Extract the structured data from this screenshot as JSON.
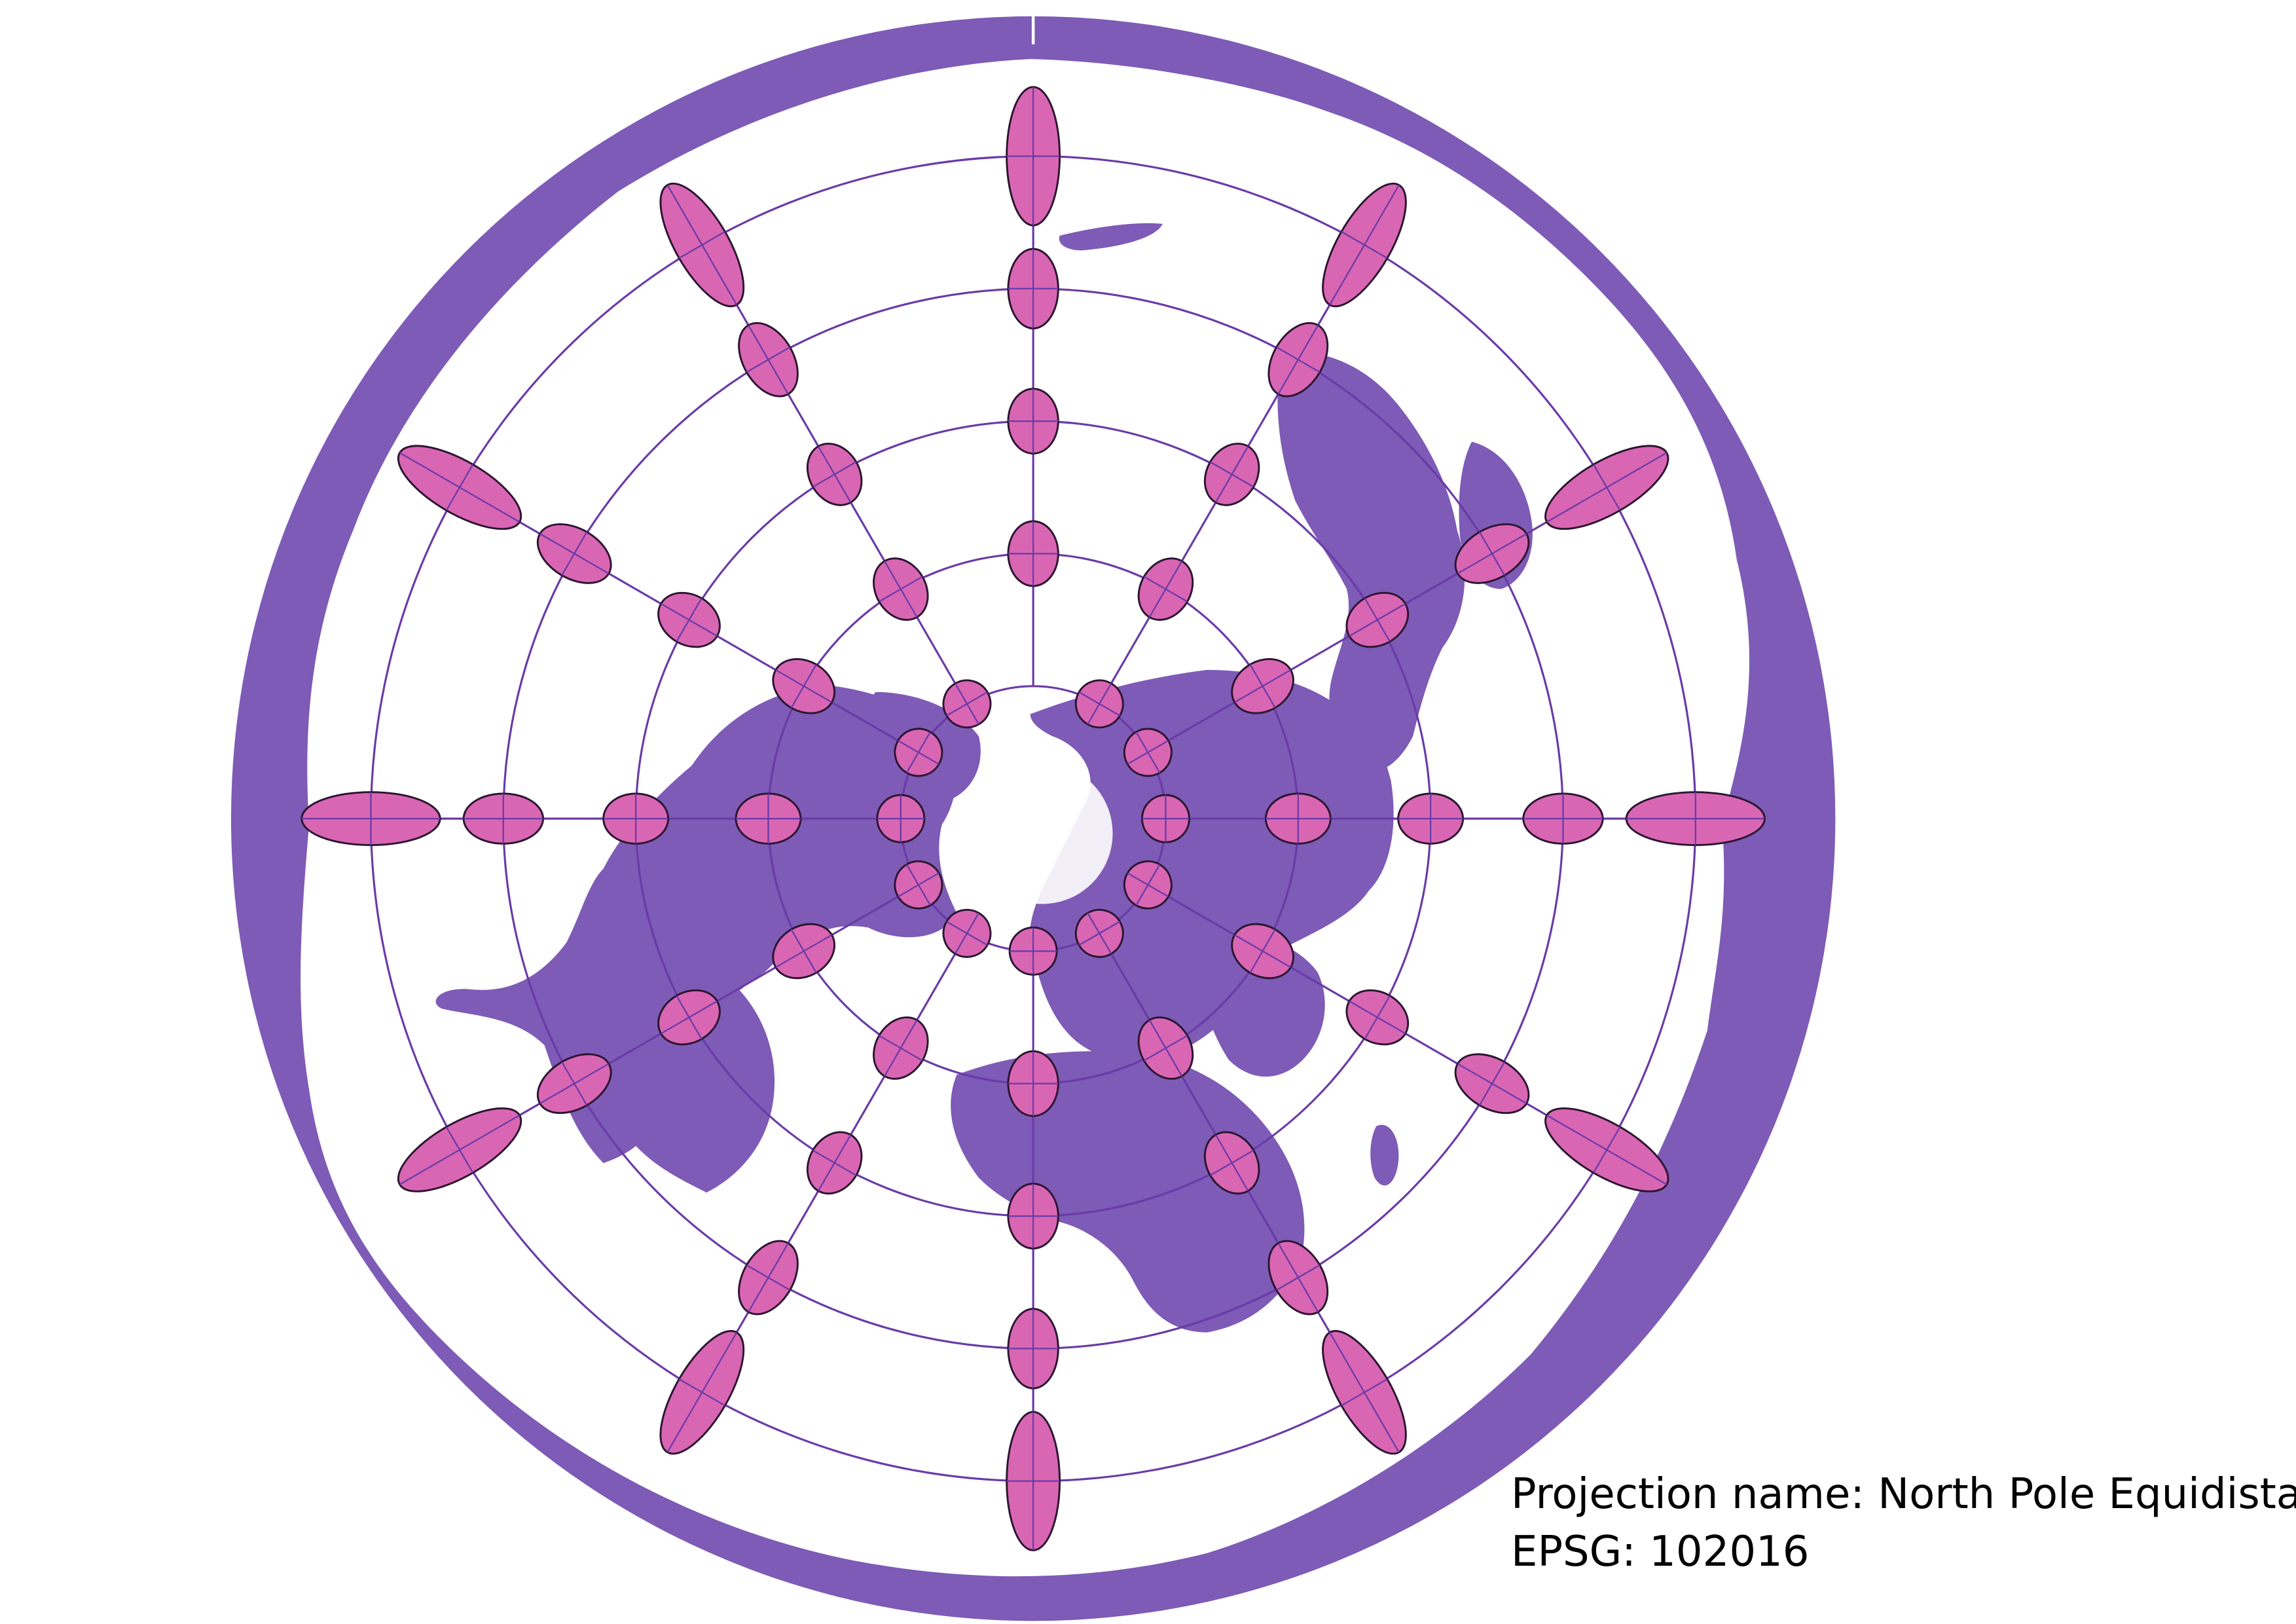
{
  "caption": {
    "projection_line": "Projection name: North Pole Equidistant",
    "epsg_line": "EPSG: 102016"
  },
  "colors": {
    "land": "#7d5bb6",
    "ocean": "#ffffff",
    "ellipse_fill": "#d966b3",
    "ellipse_stroke": "#2a1530",
    "graticule": "#6a3aa8",
    "border": "#ffffff"
  },
  "map": {
    "projection": "North Pole Azimuthal Equidistant",
    "features": [
      "land-mass",
      "country-borders",
      "graticule",
      "tissot-indicatrices",
      "outer-rim"
    ]
  }
}
